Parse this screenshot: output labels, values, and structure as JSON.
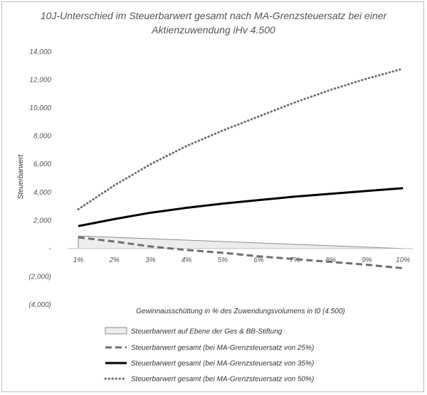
{
  "chart_data": {
    "type": "line",
    "title_line1": "10J-Unterschied im Steuerbarwert gesamt nach MA-Grenzsteuersatz bei einer",
    "title_line2": "Aktienzuwendung iHv 4.500",
    "xlabel": "Gewinnausschüttung in % des Zuwendungsvolumens in t0 (4.500)",
    "ylabel": "Steuerbarwert",
    "categories": [
      "1%",
      "2%",
      "3%",
      "4%",
      "5%",
      "6%",
      "7%",
      "8%",
      "9%",
      "10%"
    ],
    "ylim": [
      -4000,
      14000
    ],
    "y_ticks": [
      {
        "value": 14000,
        "label": "14,000"
      },
      {
        "value": 12000,
        "label": "12,000"
      },
      {
        "value": 10000,
        "label": "10,000"
      },
      {
        "value": 8000,
        "label": "8,000"
      },
      {
        "value": 6000,
        "label": "6,000"
      },
      {
        "value": 4000,
        "label": "4,000"
      },
      {
        "value": 2000,
        "label": "2,000"
      },
      {
        "value": 0,
        "label": "-"
      },
      {
        "value": -2000,
        "label": "(2,000)"
      },
      {
        "value": -4000,
        "label": "(4,000)"
      }
    ],
    "grid": false,
    "legend_position": "bottom",
    "series": [
      {
        "name": "Steuerbarwert auf Ebene der Ges & BB-Stiftung",
        "style": "area",
        "color": "#ededed",
        "stroke": "#8c8c8c",
        "values": [
          900,
          800,
          700,
          600,
          500,
          400,
          300,
          200,
          100,
          0
        ]
      },
      {
        "name": "Steuerbarwert  gesamt (bei MA-Grenzsteuersatz von 25%)",
        "style": "dashed",
        "color": "#6e6e6e",
        "values": [
          800,
          500,
          150,
          -100,
          -300,
          -550,
          -750,
          -950,
          -1150,
          -1400
        ]
      },
      {
        "name": "Steuerbarwert  gesamt (bei MA-Grenzsteuersatz von 35%)",
        "style": "solid",
        "color": "#000000",
        "values": [
          1600,
          2100,
          2550,
          2900,
          3200,
          3450,
          3700,
          3900,
          4100,
          4300
        ]
      },
      {
        "name": "Steuerbarwert gesamt (bei MA-Grenzsteuersatz von 50%)",
        "style": "dotted",
        "color": "#6e6e6e",
        "values": [
          2800,
          4500,
          6000,
          7300,
          8400,
          9400,
          10400,
          11300,
          12100,
          12800
        ]
      }
    ]
  }
}
